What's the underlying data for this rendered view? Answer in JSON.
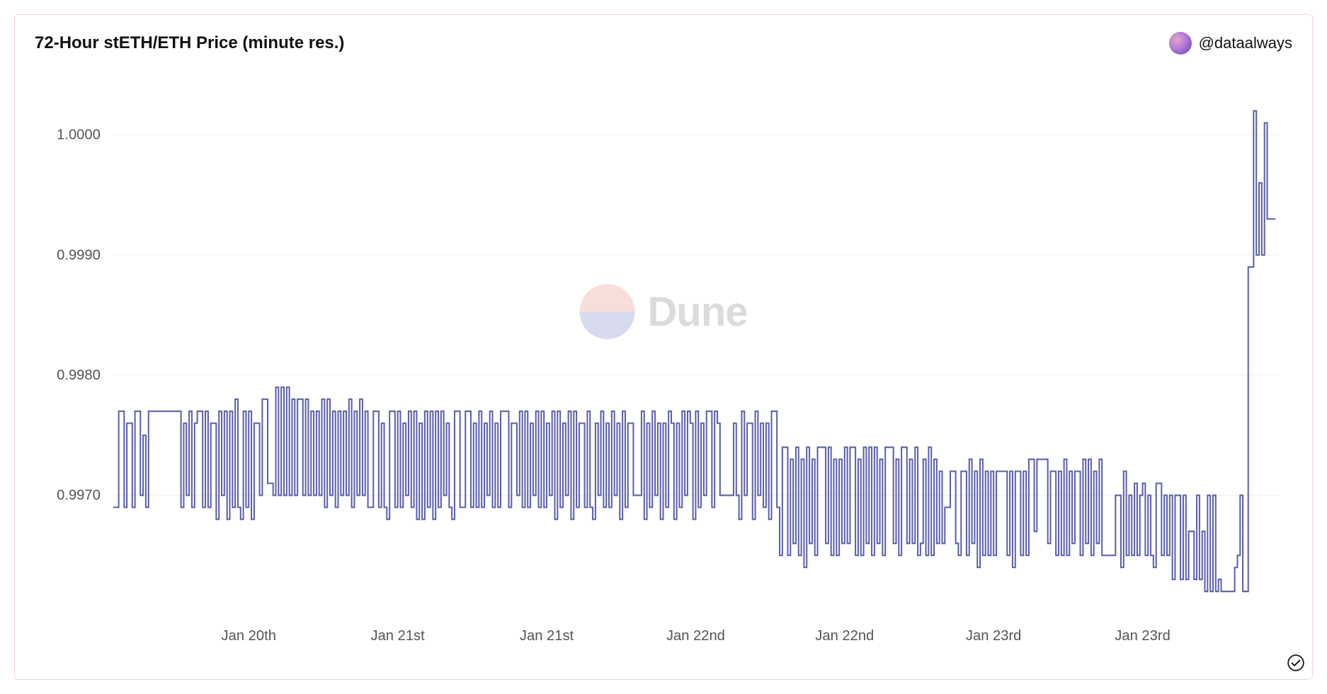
{
  "header": {
    "title": "72-Hour stETH/ETH Price (minute res.)",
    "author_handle": "@dataalways"
  },
  "watermark": {
    "text": "Dune"
  },
  "chart": {
    "type": "line",
    "background_color": "#ffffff",
    "border_color": "#f8d5d5",
    "grid_color": "#f0f0f0",
    "line_color": "#5a5fa8",
    "line_width": 2,
    "axis_text_color": "#555555",
    "axis_fontsize": 20,
    "title_fontsize": 24,
    "y": {
      "min": 0.996,
      "max": 1.0005,
      "ticks": [
        0.997,
        0.998,
        0.999,
        1.0
      ],
      "tick_labels": [
        "0.9970",
        "0.9980",
        "0.9990",
        "1.0000"
      ]
    },
    "x": {
      "min": 0,
      "max": 430,
      "ticks": [
        50,
        105,
        160,
        215,
        270,
        325,
        380
      ],
      "tick_labels": [
        "Jan 20th",
        "Jan 21st",
        "Jan 21st",
        "Jan 22nd",
        "Jan 22nd",
        "Jan 23rd",
        "Jan 23rd"
      ]
    },
    "series": [
      0.9969,
      0.9969,
      0.9977,
      0.9977,
      0.9969,
      0.9976,
      0.9976,
      0.9969,
      0.9977,
      0.9977,
      0.997,
      0.9975,
      0.9969,
      0.9977,
      0.9977,
      0.9977,
      0.9977,
      0.9977,
      0.9977,
      0.9977,
      0.9977,
      0.9977,
      0.9977,
      0.9977,
      0.9977,
      0.9969,
      0.9976,
      0.997,
      0.9977,
      0.9969,
      0.9976,
      0.9977,
      0.9977,
      0.9969,
      0.9977,
      0.9969,
      0.9976,
      0.9976,
      0.9968,
      0.9977,
      0.997,
      0.9977,
      0.9968,
      0.9977,
      0.9969,
      0.9978,
      0.9969,
      0.9968,
      0.9977,
      0.9969,
      0.9977,
      0.9968,
      0.9976,
      0.9976,
      0.997,
      0.9978,
      0.9978,
      0.9971,
      0.9971,
      0.997,
      0.9979,
      0.997,
      0.9979,
      0.997,
      0.9979,
      0.997,
      0.9978,
      0.997,
      0.9978,
      0.9978,
      0.997,
      0.9978,
      0.997,
      0.9977,
      0.997,
      0.9977,
      0.997,
      0.9978,
      0.9969,
      0.9978,
      0.997,
      0.9977,
      0.9969,
      0.9977,
      0.997,
      0.9977,
      0.997,
      0.9978,
      0.9969,
      0.9977,
      0.997,
      0.9978,
      0.997,
      0.9977,
      0.9969,
      0.9969,
      0.9977,
      0.9977,
      0.9969,
      0.9976,
      0.9969,
      0.9968,
      0.9977,
      0.9977,
      0.9969,
      0.9977,
      0.9969,
      0.9976,
      0.997,
      0.9977,
      0.9969,
      0.9977,
      0.9968,
      0.9976,
      0.9968,
      0.9977,
      0.9969,
      0.9977,
      0.9968,
      0.9977,
      0.9969,
      0.9977,
      0.997,
      0.9976,
      0.9969,
      0.9968,
      0.9977,
      0.9977,
      0.9969,
      0.9969,
      0.9977,
      0.9977,
      0.9969,
      0.9976,
      0.9969,
      0.9977,
      0.9969,
      0.9976,
      0.997,
      0.9977,
      0.9969,
      0.9976,
      0.9969,
      0.9977,
      0.9977,
      0.9977,
      0.9969,
      0.9976,
      0.9976,
      0.997,
      0.9977,
      0.9969,
      0.9977,
      0.9969,
      0.9976,
      0.997,
      0.9977,
      0.9969,
      0.9977,
      0.9969,
      0.9976,
      0.997,
      0.9977,
      0.9968,
      0.9977,
      0.9969,
      0.9976,
      0.997,
      0.9977,
      0.9968,
      0.9977,
      0.9969,
      0.9976,
      0.9976,
      0.9969,
      0.9977,
      0.9969,
      0.9968,
      0.9976,
      0.997,
      0.9977,
      0.9969,
      0.9976,
      0.9969,
      0.9977,
      0.997,
      0.9976,
      0.9968,
      0.9977,
      0.9969,
      0.9976,
      0.9976,
      0.997,
      0.997,
      0.997,
      0.9977,
      0.9968,
      0.9976,
      0.9969,
      0.9977,
      0.997,
      0.9976,
      0.9968,
      0.9976,
      0.9969,
      0.9977,
      0.9976,
      0.9968,
      0.9976,
      0.9969,
      0.9977,
      0.997,
      0.9977,
      0.9976,
      0.9968,
      0.9977,
      0.9969,
      0.9976,
      0.997,
      0.9977,
      0.9977,
      0.9969,
      0.9977,
      0.9976,
      0.997,
      0.997,
      0.997,
      0.997,
      0.997,
      0.9976,
      0.997,
      0.9968,
      0.9977,
      0.997,
      0.9976,
      0.9976,
      0.9968,
      0.9977,
      0.997,
      0.9976,
      0.9969,
      0.9976,
      0.9968,
      0.9977,
      0.9977,
      0.9969,
      0.9965,
      0.9974,
      0.9974,
      0.9965,
      0.9973,
      0.9966,
      0.9974,
      0.9965,
      0.9973,
      0.9964,
      0.9974,
      0.9966,
      0.9973,
      0.9965,
      0.9974,
      0.9974,
      0.9974,
      0.9966,
      0.9974,
      0.9965,
      0.9973,
      0.9965,
      0.9973,
      0.9966,
      0.9974,
      0.9966,
      0.9974,
      0.9974,
      0.9965,
      0.9973,
      0.9965,
      0.9974,
      0.9966,
      0.9974,
      0.9965,
      0.9974,
      0.9966,
      0.9973,
      0.9965,
      0.9974,
      0.9974,
      0.9974,
      0.9966,
      0.9973,
      0.9965,
      0.9974,
      0.9974,
      0.9966,
      0.9973,
      0.9966,
      0.9974,
      0.9965,
      0.9966,
      0.9973,
      0.9965,
      0.9974,
      0.9965,
      0.9973,
      0.9966,
      0.9972,
      0.9966,
      0.9969,
      0.9969,
      0.9972,
      0.9972,
      0.9966,
      0.9965,
      0.9972,
      0.9972,
      0.9965,
      0.9973,
      0.9966,
      0.9972,
      0.9964,
      0.9973,
      0.9965,
      0.9972,
      0.9965,
      0.9972,
      0.9965,
      0.9972,
      0.9972,
      0.9972,
      0.9972,
      0.9965,
      0.9972,
      0.9964,
      0.9972,
      0.9972,
      0.9965,
      0.9972,
      0.9965,
      0.9973,
      0.9973,
      0.9967,
      0.9973,
      0.9973,
      0.9973,
      0.9973,
      0.9966,
      0.9972,
      0.9972,
      0.9965,
      0.9972,
      0.9965,
      0.9973,
      0.9965,
      0.9972,
      0.9966,
      0.9972,
      0.9972,
      0.9965,
      0.9973,
      0.9966,
      0.9973,
      0.9965,
      0.9972,
      0.9966,
      0.9973,
      0.9965,
      0.9965,
      0.9965,
      0.9965,
      0.9965,
      0.997,
      0.997,
      0.9964,
      0.9972,
      0.9965,
      0.997,
      0.9965,
      0.9971,
      0.9965,
      0.997,
      0.9971,
      0.9965,
      0.997,
      0.9965,
      0.9964,
      0.9971,
      0.9971,
      0.9965,
      0.997,
      0.9965,
      0.997,
      0.9963,
      0.997,
      0.997,
      0.9963,
      0.997,
      0.9963,
      0.9967,
      0.9967,
      0.9963,
      0.997,
      0.9963,
      0.9967,
      0.9962,
      0.997,
      0.9962,
      0.997,
      0.9962,
      0.9963,
      0.9962,
      0.9962,
      0.9962,
      0.9962,
      0.9962,
      0.9964,
      0.9965,
      0.997,
      0.9962,
      0.9962,
      0.9989,
      0.9989,
      1.0002,
      0.999,
      0.9996,
      0.999,
      1.0001,
      0.9993,
      0.9993,
      0.9993,
      0.9993
    ]
  }
}
